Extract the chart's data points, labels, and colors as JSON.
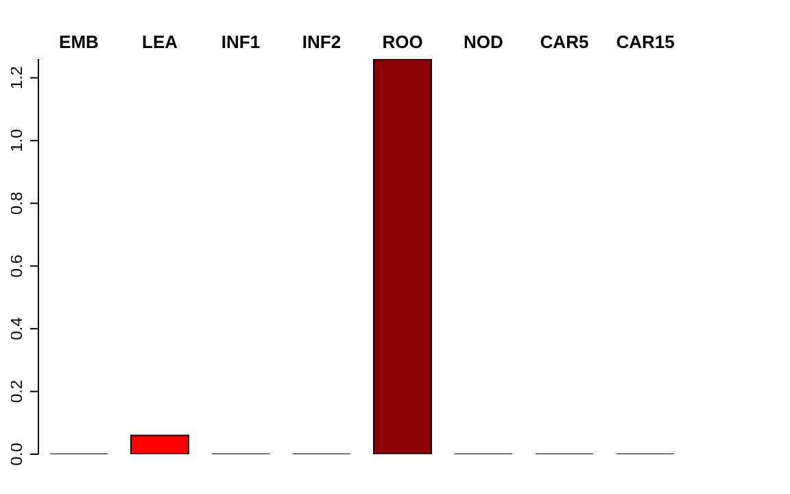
{
  "chart_data": {
    "type": "bar",
    "categories": [
      "EMB",
      "LEA",
      "INF1",
      "INF2",
      "ROO",
      "NOD",
      "CAR5",
      "CAR15"
    ],
    "values": [
      0,
      0.06,
      0,
      0,
      1.26,
      0,
      0,
      0
    ],
    "colors": [
      "#ffffff",
      "#ff0000",
      "#ffffff",
      "#ffffff",
      "#8b0000",
      "#ffffff",
      "#ffffff",
      "#ffffff"
    ],
    "ylim": [
      0,
      1.26
    ],
    "yticks": [
      {
        "value": 0,
        "label": "0.0"
      },
      0.2,
      0.4,
      0.6,
      0.8,
      {
        "value": 1,
        "label": "1.0"
      },
      1.2
    ],
    "grid": false,
    "legend": false
  }
}
